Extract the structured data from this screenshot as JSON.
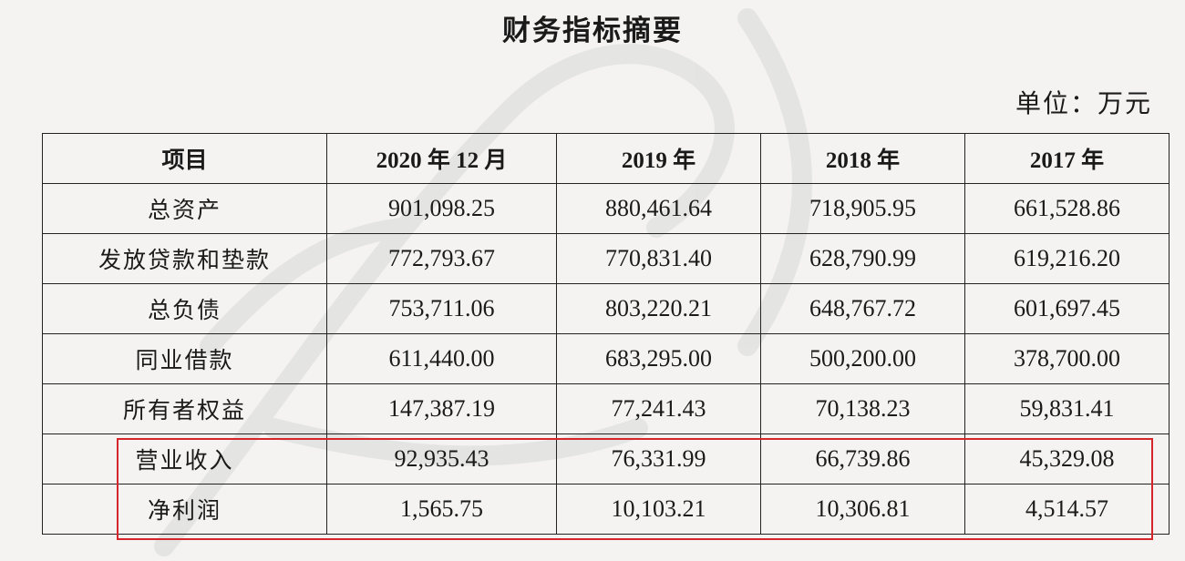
{
  "title": "财务指标摘要",
  "unit": "单位：万元",
  "table": {
    "headers": [
      "项目",
      "2020 年 12 月",
      "2019 年",
      "2018 年",
      "2017 年"
    ],
    "rows": [
      [
        "总资产",
        "901,098.25",
        "880,461.64",
        "718,905.95",
        "661,528.86"
      ],
      [
        "发放贷款和垫款",
        "772,793.67",
        "770,831.40",
        "628,790.99",
        "619,216.20"
      ],
      [
        "总负债",
        "753,711.06",
        "803,220.21",
        "648,767.72",
        "601,697.45"
      ],
      [
        "同业借款",
        "611,440.00",
        "683,295.00",
        "500,200.00",
        "378,700.00"
      ],
      [
        "所有者权益",
        "147,387.19",
        "77,241.43",
        "70,138.23",
        "59,831.41"
      ],
      [
        "营业收入",
        "92,935.43",
        "76,331.99",
        "66,739.86",
        "45,329.08"
      ],
      [
        "净利润",
        "1,565.75",
        "10,103.21",
        "10,306.81",
        "4,514.57"
      ]
    ]
  },
  "colors": {
    "highlight": "#d6262c",
    "background": "#f4f3f2"
  }
}
